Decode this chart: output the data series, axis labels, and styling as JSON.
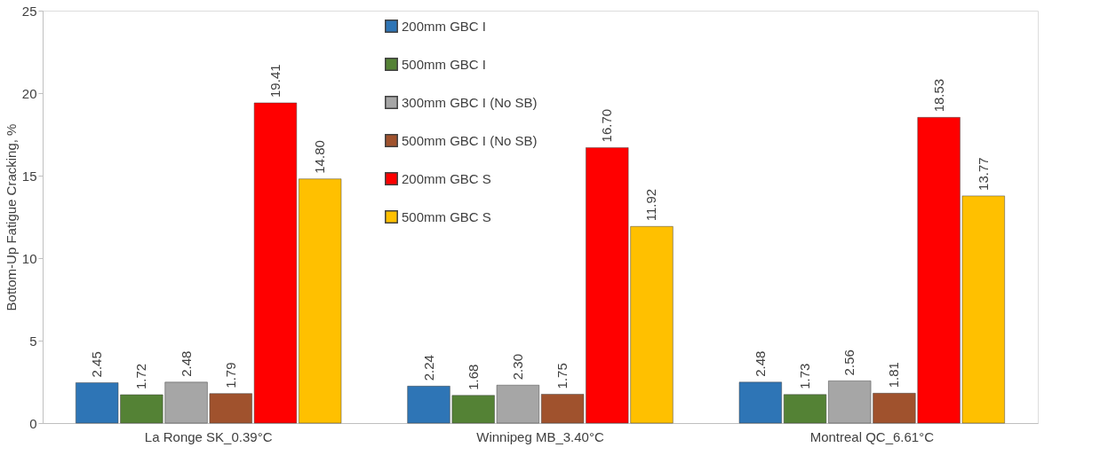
{
  "chart_data": {
    "type": "bar",
    "ylabel": "Bottom-Up Fatigue Cracking, %",
    "categories": [
      "La Ronge SK_0.39°C",
      "Winnipeg MB_3.40°C",
      "Montreal QC_6.61°C"
    ],
    "series": [
      {
        "name": "200mm GBC I",
        "color": "#2e75b6",
        "values": [
          2.45,
          2.24,
          2.48
        ],
        "value_labels": [
          "2.45",
          "2.24",
          "2.48"
        ]
      },
      {
        "name": "500mm GBC I",
        "color": "#548235",
        "values": [
          1.72,
          1.68,
          1.73
        ],
        "value_labels": [
          "1.72",
          "1.68",
          "1.73"
        ]
      },
      {
        "name": "300mm GBC I (No SB)",
        "color": "#a6a6a6",
        "values": [
          2.48,
          2.3,
          2.56
        ],
        "value_labels": [
          "2.48",
          "2.30",
          "2.56"
        ]
      },
      {
        "name": "500mm GBC I (No SB)",
        "color": "#a0522d",
        "values": [
          1.79,
          1.75,
          1.81
        ],
        "value_labels": [
          "1.79",
          "1.75",
          "1.81"
        ]
      },
      {
        "name": "200mm GBC S",
        "color": "#ff0000",
        "values": [
          19.41,
          16.7,
          18.53
        ],
        "value_labels": [
          "19.41",
          "16.70",
          "18.53"
        ]
      },
      {
        "name": "500mm GBC S",
        "color": "#ffc000",
        "values": [
          14.8,
          11.92,
          13.77
        ],
        "value_labels": [
          "14.80",
          "11.92",
          "13.77"
        ]
      }
    ],
    "ylim": [
      0,
      25
    ],
    "yticks": [
      0,
      5,
      10,
      15,
      20,
      25
    ],
    "grid": false,
    "legend": "top"
  }
}
